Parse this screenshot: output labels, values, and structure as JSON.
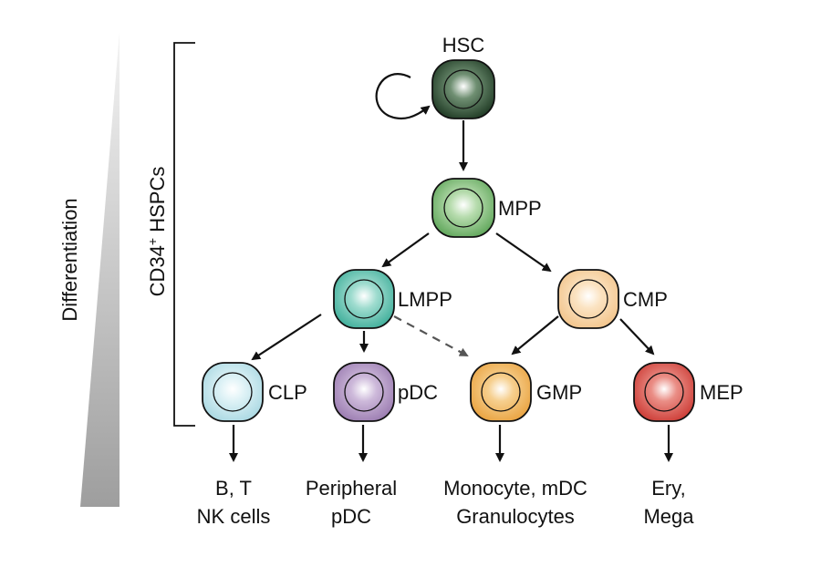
{
  "side_labels": {
    "differentiation": "Differentiation",
    "hspc_bracket": "CD34",
    "hspc_sup": "+",
    "hspc_rest": " HSPCs"
  },
  "cells": {
    "hsc": {
      "label": "HSC",
      "color": "#1f3a24"
    },
    "mpp": {
      "label": "MPP",
      "color": "#5fa65a"
    },
    "lmpp": {
      "label": "LMPP",
      "color": "#3fae9a"
    },
    "cmp": {
      "label": "CMP",
      "color": "#f2c48b"
    },
    "clp": {
      "label": "CLP",
      "color": "#a9d8e2"
    },
    "pdc": {
      "label": "pDC",
      "color": "#9a7bb0"
    },
    "gmp": {
      "label": "GMP",
      "color": "#e9a23f"
    },
    "mep": {
      "label": "MEP",
      "color": "#cc3b35"
    }
  },
  "outputs": {
    "clp": {
      "line1": "B, T",
      "line2": "NK cells"
    },
    "pdc": {
      "line1": "Peripheral",
      "line2": "pDC"
    },
    "gmp": {
      "line1": "Monocyte, mDC",
      "line2": "Granulocytes"
    },
    "mep": {
      "line1": "Ery,",
      "line2": "Mega"
    }
  }
}
